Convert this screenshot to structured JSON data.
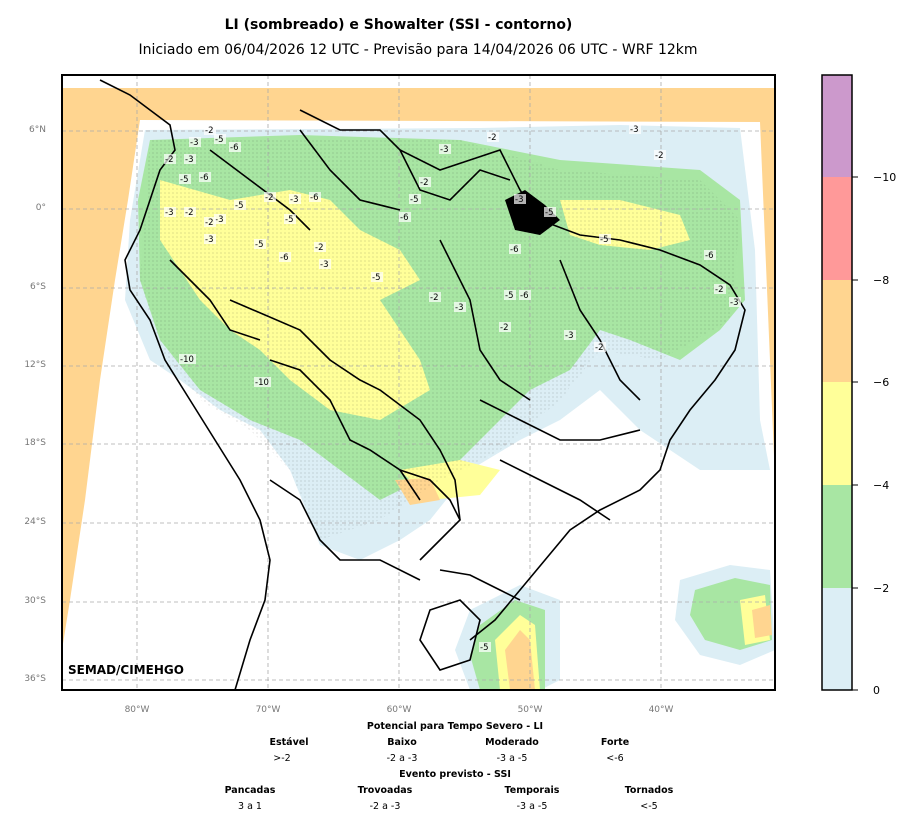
{
  "title": "LI (sombreado) e Showalter (SSI - contorno)",
  "subtitle": "Iniciado em 06/04/2026 12 UTC - Previsão para 14/04/2026 06 UTC - WRF 12km",
  "lat_labels": [
    "6°N",
    "0°",
    "6°S",
    "12°S",
    "18°S",
    "24°S",
    "30°S",
    "36°S"
  ],
  "lon_labels": [
    "80°W",
    "70°W",
    "60°W",
    "50°W",
    "40°W"
  ],
  "credit": "SEMAD/CIMEHGO",
  "colorbar": {
    "colors": [
      "#dceef5",
      "#a8e6a3",
      "#ffff99",
      "#ffd590",
      "#ff9999",
      "#cc99cc"
    ],
    "labels": [
      "0",
      "−2",
      "−4",
      "−6",
      "−8",
      "−10"
    ]
  },
  "legend": {
    "li_title": "Potencial para Tempo Severo - LI",
    "li_categories": [
      {
        "name": "Estável",
        "range": ">-2"
      },
      {
        "name": "Baixo",
        "range": "-2 a -3"
      },
      {
        "name": "Moderado",
        "range": "-3 a -5"
      },
      {
        "name": "Forte",
        "range": "<-6"
      }
    ],
    "ssi_title": "Evento previsto - SSI",
    "ssi_categories": [
      {
        "name": "Pancadas",
        "range": "3 a 1"
      },
      {
        "name": "Trovoadas",
        "range": "-2 a -3"
      },
      {
        "name": "Temporais",
        "range": "-3 a -5"
      },
      {
        "name": "Tornados",
        "range": "<-5"
      }
    ]
  },
  "contour_labels": [
    "-2",
    "-3",
    "-5",
    "-6",
    "-2",
    "-3",
    "-5",
    "-6",
    "-3",
    "-2",
    "-3",
    "-5",
    "-2",
    "-3",
    "-6",
    "-5",
    "-2",
    "-3",
    "-5",
    "-6",
    "-2",
    "-3",
    "-10",
    "-10",
    "-5",
    "-6",
    "-3",
    "-2",
    "-5",
    "-2",
    "-3",
    "-5",
    "-6",
    "-2",
    "-3",
    "-2",
    "-5",
    "-6",
    "-3",
    "-2",
    "-5",
    "-3",
    "-2",
    "-6",
    "-2",
    "-3",
    "-5"
  ]
}
